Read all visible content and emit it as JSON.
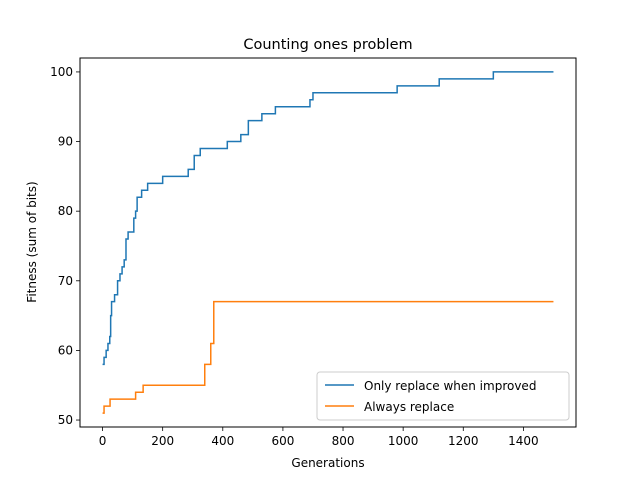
{
  "chart_data": {
    "type": "line",
    "title": "Counting ones problem",
    "xlabel": "Generations",
    "ylabel": "Fitness (sum of bits)",
    "xlim": [
      -75,
      1575
    ],
    "ylim": [
      49,
      102
    ],
    "xticks": [
      0,
      200,
      400,
      600,
      800,
      1000,
      1200,
      1400
    ],
    "yticks": [
      50,
      60,
      70,
      80,
      90,
      100
    ],
    "grid": false,
    "legend_position": "lower-right",
    "series": [
      {
        "name": "Only replace when improved",
        "color": "#1f77b4",
        "step": true,
        "points": [
          [
            0,
            58
          ],
          [
            5,
            59
          ],
          [
            12,
            60
          ],
          [
            18,
            61
          ],
          [
            24,
            62
          ],
          [
            27,
            65
          ],
          [
            30,
            67
          ],
          [
            40,
            68
          ],
          [
            50,
            70
          ],
          [
            58,
            71
          ],
          [
            65,
            72
          ],
          [
            72,
            73
          ],
          [
            78,
            76
          ],
          [
            85,
            77
          ],
          [
            104,
            79
          ],
          [
            110,
            80
          ],
          [
            115,
            82
          ],
          [
            130,
            83
          ],
          [
            150,
            84
          ],
          [
            200,
            85
          ],
          [
            285,
            86
          ],
          [
            305,
            88
          ],
          [
            325,
            89
          ],
          [
            415,
            90
          ],
          [
            460,
            91
          ],
          [
            485,
            93
          ],
          [
            530,
            94
          ],
          [
            575,
            95
          ],
          [
            690,
            96
          ],
          [
            700,
            97
          ],
          [
            980,
            98
          ],
          [
            1120,
            99
          ],
          [
            1300,
            100
          ],
          [
            1500,
            100
          ]
        ]
      },
      {
        "name": "Always replace",
        "color": "#ff7f0e",
        "step": true,
        "points": [
          [
            0,
            51
          ],
          [
            5,
            52
          ],
          [
            25,
            53
          ],
          [
            110,
            54
          ],
          [
            135,
            55
          ],
          [
            340,
            58
          ],
          [
            360,
            61
          ],
          [
            370,
            67
          ],
          [
            1500,
            67
          ]
        ]
      }
    ]
  }
}
